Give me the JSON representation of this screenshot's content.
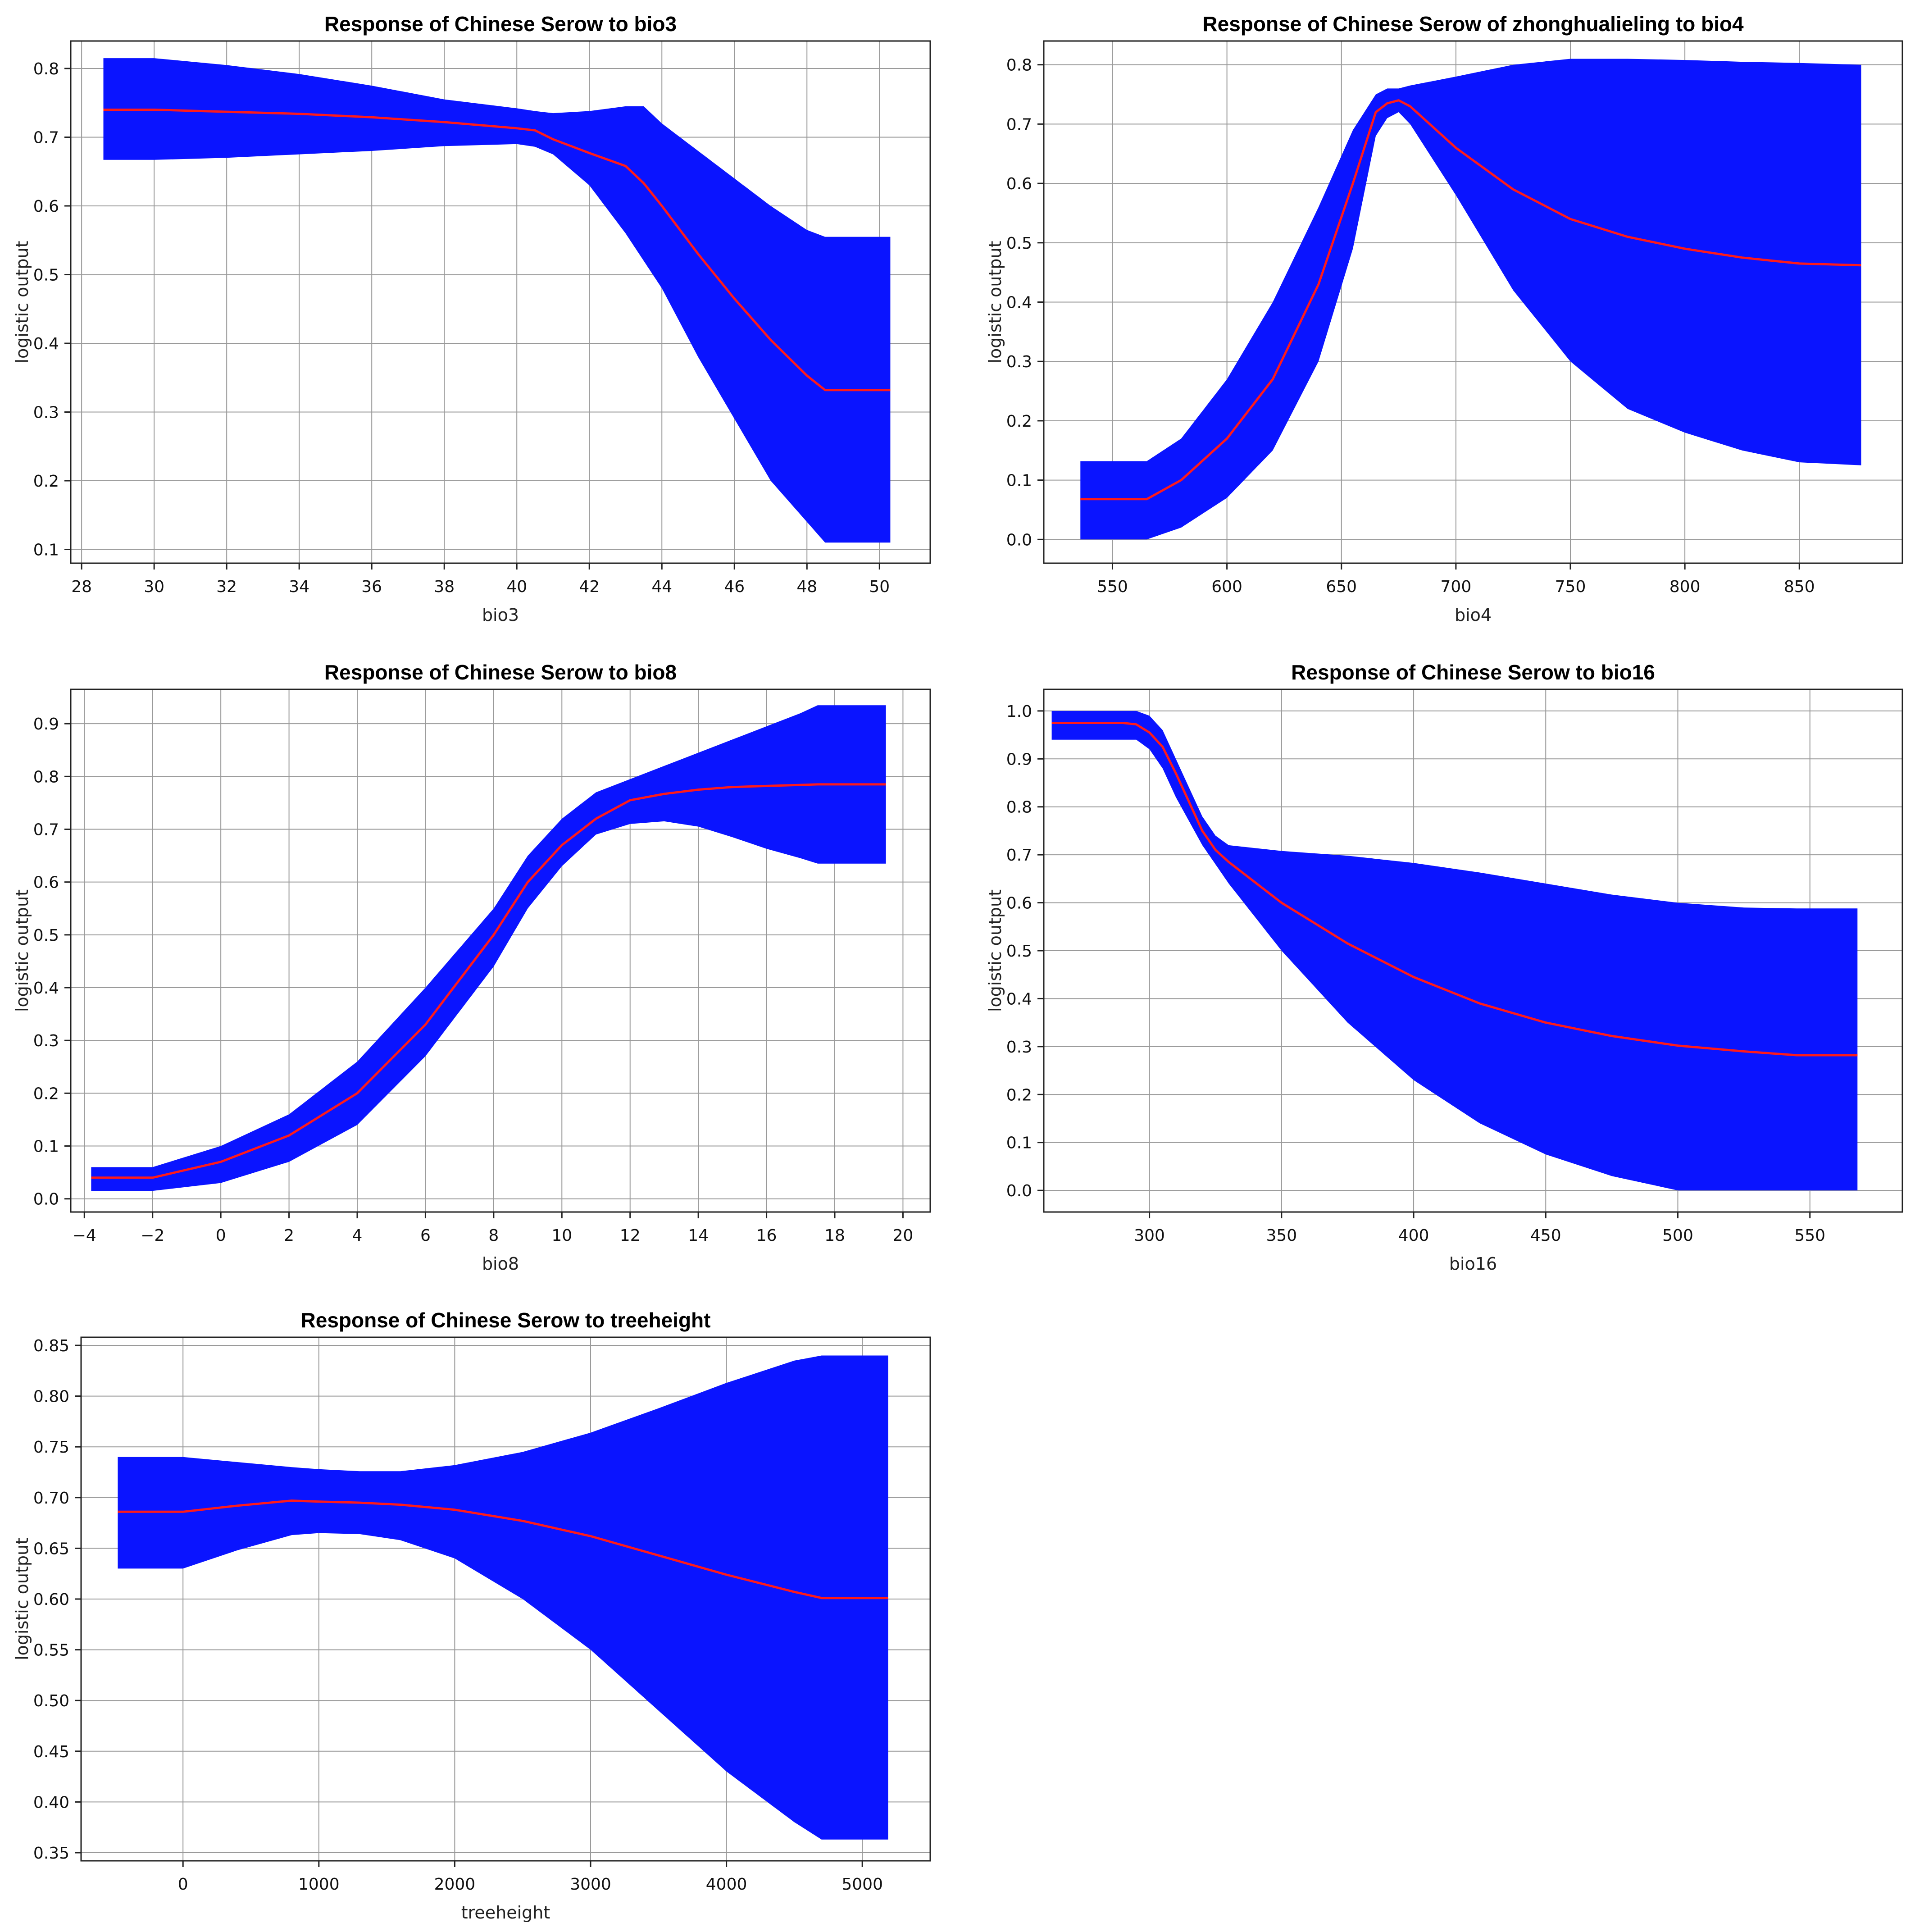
{
  "chart_data": [
    {
      "type": "area",
      "title": "Response of Chinese Serow to bio3",
      "xlabel": "bio3",
      "ylabel": "logistic output",
      "xlim": [
        27.7,
        51.4
      ],
      "ylim": [
        0.08,
        0.84
      ],
      "xticks": [
        28,
        30,
        32,
        34,
        36,
        38,
        40,
        42,
        44,
        46,
        48,
        50
      ],
      "xtick_labels": [
        "28",
        "30",
        "32",
        "34",
        "36",
        "38",
        "40",
        "42",
        "44",
        "46",
        "48",
        "50"
      ],
      "yticks": [
        0.1,
        0.2,
        0.3,
        0.4,
        0.5,
        0.6,
        0.7,
        0.8
      ],
      "ytick_labels": [
        "0.1",
        "0.2",
        "0.3",
        "0.4",
        "0.5",
        "0.6",
        "0.7",
        "0.8"
      ],
      "grid": true,
      "band_color": "#0a14ff",
      "line_color": "#ff1a1a",
      "x": [
        28.6,
        30,
        32,
        34,
        36,
        38,
        40,
        40.5,
        41,
        42,
        43,
        43.5,
        44,
        45,
        46,
        47,
        48,
        48.5,
        49,
        50.3
      ],
      "mean": [
        0.74,
        0.74,
        0.737,
        0.734,
        0.729,
        0.722,
        0.713,
        0.71,
        0.697,
        0.677,
        0.658,
        0.633,
        0.6,
        0.53,
        0.465,
        0.405,
        0.353,
        0.332,
        0.332,
        0.332
      ],
      "upper": [
        0.815,
        0.815,
        0.805,
        0.792,
        0.775,
        0.755,
        0.742,
        0.738,
        0.735,
        0.738,
        0.745,
        0.745,
        0.72,
        0.68,
        0.64,
        0.6,
        0.565,
        0.555,
        0.555,
        0.555
      ],
      "lower": [
        0.667,
        0.667,
        0.67,
        0.675,
        0.68,
        0.687,
        0.69,
        0.686,
        0.675,
        0.63,
        0.56,
        0.52,
        0.48,
        0.38,
        0.29,
        0.2,
        0.14,
        0.11,
        0.11,
        0.11
      ]
    },
    {
      "type": "area",
      "title": "Response of Chinese Serow of zhonghualieling to bio4",
      "xlabel": "bio4",
      "ylabel": "logistic output",
      "xlim": [
        520,
        895
      ],
      "ylim": [
        -0.04,
        0.84
      ],
      "xticks": [
        550,
        600,
        650,
        700,
        750,
        800,
        850
      ],
      "xtick_labels": [
        "550",
        "600",
        "650",
        "700",
        "750",
        "800",
        "850"
      ],
      "yticks": [
        0.0,
        0.1,
        0.2,
        0.3,
        0.4,
        0.5,
        0.6,
        0.7,
        0.8
      ],
      "ytick_labels": [
        "0.0",
        "0.1",
        "0.2",
        "0.3",
        "0.4",
        "0.5",
        "0.6",
        "0.7",
        "0.8"
      ],
      "grid": true,
      "band_color": "#0a14ff",
      "line_color": "#ff1a1a",
      "x": [
        536,
        565,
        580,
        600,
        620,
        640,
        655,
        665,
        670,
        675,
        680,
        700,
        725,
        750,
        775,
        800,
        825,
        850,
        877
      ],
      "mean": [
        0.068,
        0.068,
        0.1,
        0.17,
        0.27,
        0.43,
        0.6,
        0.72,
        0.735,
        0.74,
        0.73,
        0.66,
        0.59,
        0.54,
        0.51,
        0.49,
        0.475,
        0.465,
        0.462
      ],
      "upper": [
        0.132,
        0.132,
        0.17,
        0.27,
        0.4,
        0.56,
        0.69,
        0.75,
        0.76,
        0.76,
        0.765,
        0.78,
        0.8,
        0.81,
        0.81,
        0.808,
        0.805,
        0.803,
        0.8
      ],
      "lower": [
        0.0,
        0.0,
        0.02,
        0.07,
        0.15,
        0.3,
        0.49,
        0.68,
        0.71,
        0.72,
        0.7,
        0.58,
        0.42,
        0.3,
        0.22,
        0.18,
        0.15,
        0.13,
        0.125
      ]
    },
    {
      "type": "area",
      "title": "Response of Chinese Serow to bio8",
      "xlabel": "bio8",
      "ylabel": "logistic output",
      "xlim": [
        -4.4,
        20.8
      ],
      "ylim": [
        -0.025,
        0.965
      ],
      "xticks": [
        -4,
        -2,
        0,
        2,
        4,
        6,
        8,
        10,
        12,
        14,
        16,
        18,
        20
      ],
      "xtick_labels": [
        "−4",
        "−2",
        "0",
        "2",
        "4",
        "6",
        "8",
        "10",
        "12",
        "14",
        "16",
        "18",
        "20"
      ],
      "yticks": [
        0.0,
        0.1,
        0.2,
        0.3,
        0.4,
        0.5,
        0.6,
        0.7,
        0.8,
        0.9
      ],
      "ytick_labels": [
        "0.0",
        "0.1",
        "0.2",
        "0.3",
        "0.4",
        "0.5",
        "0.6",
        "0.7",
        "0.8",
        "0.9"
      ],
      "grid": true,
      "band_color": "#0a14ff",
      "line_color": "#ff1a1a",
      "x": [
        -3.8,
        -2,
        0,
        2,
        4,
        6,
        8,
        9,
        10,
        11,
        12,
        13,
        14,
        15,
        16,
        17,
        17.5,
        18,
        19.5
      ],
      "mean": [
        0.04,
        0.04,
        0.07,
        0.12,
        0.2,
        0.33,
        0.5,
        0.6,
        0.67,
        0.72,
        0.755,
        0.767,
        0.775,
        0.78,
        0.782,
        0.784,
        0.785,
        0.785,
        0.785
      ],
      "upper": [
        0.06,
        0.06,
        0.1,
        0.16,
        0.26,
        0.4,
        0.55,
        0.65,
        0.72,
        0.77,
        0.795,
        0.82,
        0.845,
        0.87,
        0.895,
        0.92,
        0.935,
        0.935,
        0.935
      ],
      "lower": [
        0.015,
        0.015,
        0.03,
        0.07,
        0.14,
        0.27,
        0.44,
        0.55,
        0.63,
        0.69,
        0.71,
        0.715,
        0.705,
        0.685,
        0.663,
        0.645,
        0.635,
        0.635,
        0.635
      ]
    },
    {
      "type": "area",
      "title": "Response of Chinese Serow to bio16",
      "xlabel": "bio16",
      "ylabel": "logistic output",
      "xlim": [
        260,
        585
      ],
      "ylim": [
        -0.045,
        1.045
      ],
      "xticks": [
        300,
        350,
        400,
        450,
        500,
        550
      ],
      "xtick_labels": [
        "300",
        "350",
        "400",
        "450",
        "500",
        "550"
      ],
      "yticks": [
        0.0,
        0.1,
        0.2,
        0.3,
        0.4,
        0.5,
        0.6,
        0.7,
        0.8,
        0.9,
        1.0
      ],
      "ytick_labels": [
        "0.0",
        "0.1",
        "0.2",
        "0.3",
        "0.4",
        "0.5",
        "0.6",
        "0.7",
        "0.8",
        "0.9",
        "1.0"
      ],
      "grid": true,
      "band_color": "#0a14ff",
      "line_color": "#ff1a1a",
      "x": [
        263,
        290,
        295,
        300,
        305,
        310,
        315,
        320,
        325,
        330,
        350,
        375,
        400,
        425,
        450,
        475,
        500,
        525,
        545,
        568
      ],
      "mean": [
        0.975,
        0.975,
        0.972,
        0.955,
        0.925,
        0.87,
        0.81,
        0.75,
        0.71,
        0.685,
        0.6,
        0.515,
        0.445,
        0.39,
        0.35,
        0.322,
        0.302,
        0.29,
        0.282,
        0.282
      ],
      "upper": [
        1.0,
        1.0,
        1.0,
        0.99,
        0.96,
        0.9,
        0.84,
        0.78,
        0.74,
        0.72,
        0.708,
        0.698,
        0.683,
        0.663,
        0.64,
        0.617,
        0.6,
        0.59,
        0.588,
        0.588
      ],
      "lower": [
        0.94,
        0.94,
        0.94,
        0.92,
        0.88,
        0.82,
        0.77,
        0.72,
        0.68,
        0.64,
        0.5,
        0.35,
        0.23,
        0.14,
        0.075,
        0.03,
        0.0,
        0.0,
        0.0,
        0.0
      ]
    },
    {
      "type": "area",
      "title": "Response of Chinese Serow to treeheight",
      "xlabel": "treeheight",
      "ylabel": "logistic output",
      "xlim": [
        -750,
        5500
      ],
      "ylim": [
        0.342,
        0.858
      ],
      "xticks": [
        0,
        1000,
        2000,
        3000,
        4000,
        5000
      ],
      "xtick_labels": [
        "0",
        "1000",
        "2000",
        "3000",
        "4000",
        "5000"
      ],
      "yticks": [
        0.35,
        0.4,
        0.45,
        0.5,
        0.55,
        0.6,
        0.65,
        0.7,
        0.75,
        0.8,
        0.85
      ],
      "ytick_labels": [
        "0.35",
        "0.40",
        "0.45",
        "0.50",
        "0.55",
        "0.60",
        "0.65",
        "0.70",
        "0.75",
        "0.80",
        "0.85"
      ],
      "grid": true,
      "band_color": "#0a14ff",
      "line_color": "#ff1a1a",
      "x": [
        -480,
        0,
        400,
        800,
        1000,
        1300,
        1600,
        2000,
        2500,
        3000,
        3500,
        4000,
        4500,
        4700,
        5000,
        5190
      ],
      "mean": [
        0.686,
        0.686,
        0.692,
        0.697,
        0.696,
        0.695,
        0.693,
        0.688,
        0.677,
        0.662,
        0.643,
        0.624,
        0.607,
        0.601,
        0.601,
        0.601
      ],
      "upper": [
        0.74,
        0.74,
        0.735,
        0.73,
        0.728,
        0.726,
        0.726,
        0.732,
        0.745,
        0.764,
        0.788,
        0.813,
        0.835,
        0.84,
        0.84,
        0.84
      ],
      "lower": [
        0.63,
        0.63,
        0.648,
        0.663,
        0.665,
        0.664,
        0.658,
        0.64,
        0.6,
        0.55,
        0.49,
        0.43,
        0.38,
        0.363,
        0.363,
        0.363
      ]
    }
  ]
}
